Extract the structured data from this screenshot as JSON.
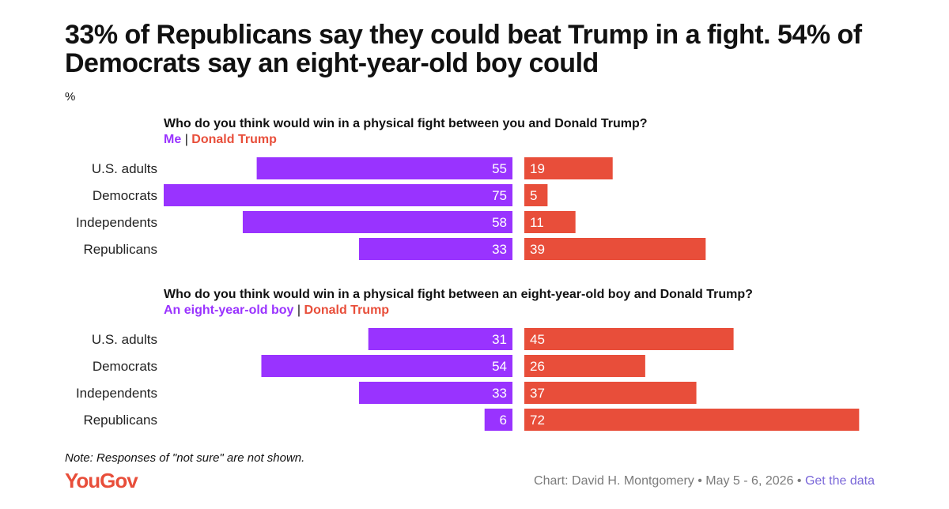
{
  "title": "33% of Republicans say they could beat Trump in a fight. 54% of Democrats say an eight-year-old boy could",
  "unit": "%",
  "chart_data": [
    {
      "type": "bar",
      "question": "Who do you think would win in a physical fight between you and Donald Trump?",
      "categories": [
        "U.S. adults",
        "Democrats",
        "Independents",
        "Republicans"
      ],
      "series": [
        {
          "name": "Me",
          "color": "#9933ff",
          "values": [
            55,
            75,
            58,
            33
          ]
        },
        {
          "name": "Donald Trump",
          "color": "#e84e3a",
          "values": [
            19,
            5,
            11,
            39
          ]
        }
      ],
      "separator": "|",
      "xlim": [
        0,
        75
      ]
    },
    {
      "type": "bar",
      "question": "Who do you think would win in a physical fight between an eight-year-old boy and Donald Trump?",
      "categories": [
        "U.S. adults",
        "Democrats",
        "Independents",
        "Republicans"
      ],
      "series": [
        {
          "name": "An eight-year-old boy",
          "color": "#9933ff",
          "values": [
            31,
            54,
            33,
            6
          ]
        },
        {
          "name": "Donald Trump",
          "color": "#e84e3a",
          "values": [
            45,
            26,
            37,
            72
          ]
        }
      ],
      "separator": "|",
      "xlim": [
        0,
        75
      ]
    }
  ],
  "note": "Note: Responses of \"not sure\" are not shown.",
  "logo": "YouGov",
  "credit": {
    "text": "Chart: David H. Montgomery • May 5 - 6, 2026 •",
    "link": "Get the data"
  }
}
